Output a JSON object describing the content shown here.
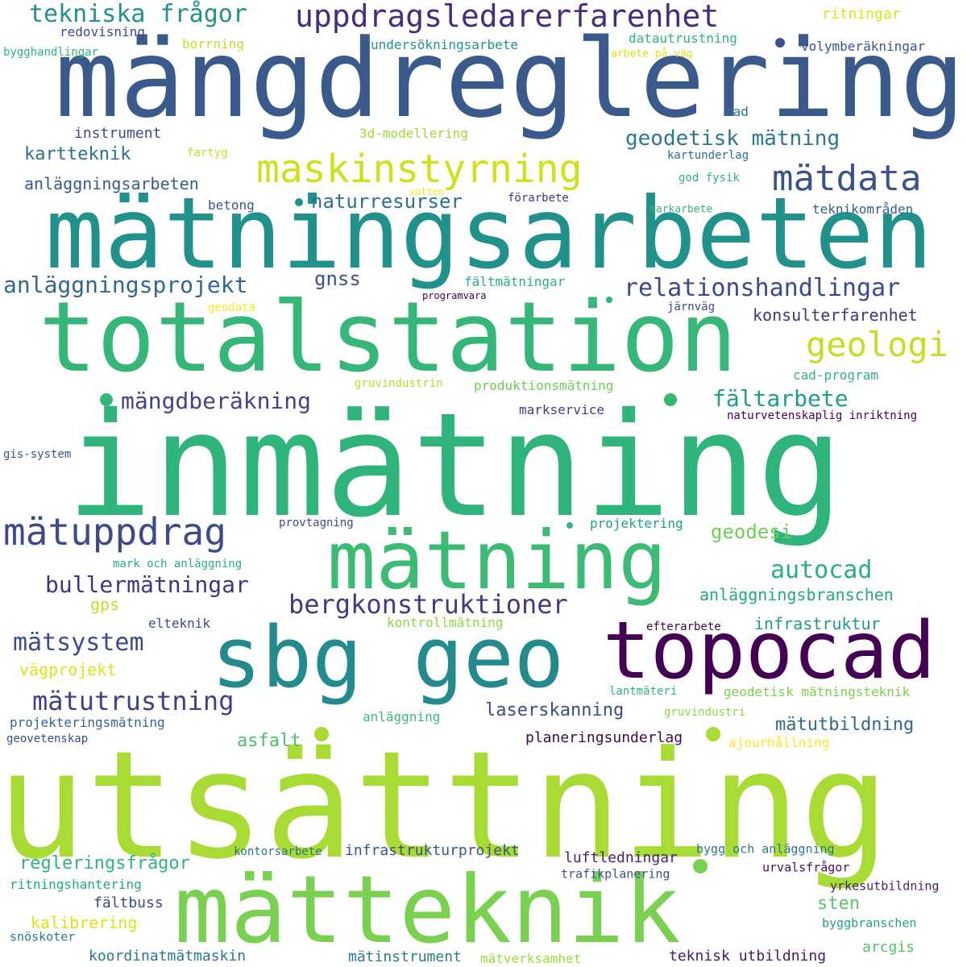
{
  "word_cloud": {
    "words": [
      {
        "text": "mängdreglering",
        "color": "#3a5a8c"
      },
      {
        "text": "mätningsarbeten",
        "color": "#21918c"
      },
      {
        "text": "totalstation",
        "color": "#35b779"
      },
      {
        "text": "inmätning",
        "color": "#2fb47c"
      },
      {
        "text": "mätning",
        "color": "#3cbb75"
      },
      {
        "text": "sbg geo",
        "color": "#238a8d"
      },
      {
        "text": "topocad",
        "color": "#440154"
      },
      {
        "text": "utsättning",
        "color": "#a8db34"
      },
      {
        "text": "mätteknik",
        "color": "#7ad151"
      },
      {
        "text": "maskinstyrning",
        "color": "#d0e11c"
      },
      {
        "text": "uppdragsledarerfarenhet",
        "color": "#472d7b"
      },
      {
        "text": "mätdata",
        "color": "#3b528b"
      },
      {
        "text": "geologi",
        "color": "#c2df23"
      },
      {
        "text": "mätuppdrag",
        "color": "#3e4a89"
      },
      {
        "text": "tekniska frågor",
        "color": "#21918c"
      },
      {
        "text": "relationshandlingar",
        "color": "#3e4989"
      },
      {
        "text": "anläggningsprojekt",
        "color": "#31688e"
      },
      {
        "text": "geodetisk mätning",
        "color": "#2a788e"
      },
      {
        "text": "mängdberäkning",
        "color": "#414487"
      },
      {
        "text": "fältarbete",
        "color": "#1f9e89"
      },
      {
        "text": "bergkonstruktioner",
        "color": "#443983"
      },
      {
        "text": "autocad",
        "color": "#29af7f"
      },
      {
        "text": "bullermätningar",
        "color": "#453581"
      },
      {
        "text": "mätsystem",
        "color": "#3e4a89"
      },
      {
        "text": "mätutrustning",
        "color": "#433e85"
      },
      {
        "text": "naturresurser",
        "color": "#2d708e"
      },
      {
        "text": "gnss",
        "color": "#3b528b"
      },
      {
        "text": "geodesi",
        "color": "#6ece58"
      },
      {
        "text": "kartteknik",
        "color": "#2c728e"
      },
      {
        "text": "anläggningsarbeten",
        "color": "#38598c"
      },
      {
        "text": "anläggningsbranschen",
        "color": "#22a884"
      },
      {
        "text": "infrastruktur",
        "color": "#1f9a8a"
      },
      {
        "text": "laserskanning",
        "color": "#3e4a89"
      },
      {
        "text": "mätutbildning",
        "color": "#31688e"
      },
      {
        "text": "regleringsfrågor",
        "color": "#2fb47c"
      },
      {
        "text": "konsulterfarenhet",
        "color": "#46337e"
      },
      {
        "text": "asfalt",
        "color": "#4ac16d"
      },
      {
        "text": "vägprojekt",
        "color": "#dde318"
      },
      {
        "text": "planeringsunderlag",
        "color": "#3e0751"
      },
      {
        "text": "infrastrukturprojekt",
        "color": "#3b528b"
      },
      {
        "text": "luftledningar",
        "color": "#482173"
      },
      {
        "text": "sten",
        "color": "#56c667"
      },
      {
        "text": "fältbuss",
        "color": "#3e4a89"
      },
      {
        "text": "kalibrering",
        "color": "#dde318"
      },
      {
        "text": "koordinatmätmaskin",
        "color": "#2a788e"
      },
      {
        "text": "mätinstrument",
        "color": "#287c8e"
      },
      {
        "text": "mätverksamhet",
        "color": "#a0da39"
      },
      {
        "text": "teknisk utbildning",
        "color": "#48186a"
      },
      {
        "text": "arcgis",
        "color": "#52c569"
      },
      {
        "text": "byggbranschen",
        "color": "#1fa187"
      },
      {
        "text": "yrkesutbildning",
        "color": "#481f70"
      },
      {
        "text": "urvalsfrågor",
        "color": "#471063"
      },
      {
        "text": "trafikplanering",
        "color": "#3b528b"
      },
      {
        "text": "bygg och anläggning",
        "color": "#2a768e"
      },
      {
        "text": "kontorsarbete",
        "color": "#2c728e"
      },
      {
        "text": "ritningshantering",
        "color": "#22a884"
      },
      {
        "text": "snöskoter",
        "color": "#2a788e"
      },
      {
        "text": "projekteringsmätning",
        "color": "#31688e"
      },
      {
        "text": "geovetenskap",
        "color": "#3e4989"
      },
      {
        "text": "anläggning",
        "color": "#3cbb75"
      },
      {
        "text": "gruvindustri",
        "color": "#8fd744"
      },
      {
        "text": "ajourhållning",
        "color": "#fde725"
      },
      {
        "text": "geodetisk mätningsteknik",
        "color": "#7ad151"
      },
      {
        "text": "lantmäteri",
        "color": "#2fb47c"
      },
      {
        "text": "efterarbete",
        "color": "#440154"
      },
      {
        "text": "elteknik",
        "color": "#3e4a89"
      },
      {
        "text": "kontrollmätning",
        "color": "#90d743"
      },
      {
        "text": "gps",
        "color": "#c2df23"
      },
      {
        "text": "mark och anläggning",
        "color": "#26ad81"
      },
      {
        "text": "provtagning",
        "color": "#3e4989"
      },
      {
        "text": "projektering",
        "color": "#1f9e89"
      },
      {
        "text": "gis-system",
        "color": "#3b528b"
      },
      {
        "text": "markservice",
        "color": "#443a83"
      },
      {
        "text": "naturvetenskaplig inriktning",
        "color": "#440154"
      },
      {
        "text": "produktionsmätning",
        "color": "#6ece58"
      },
      {
        "text": "gruvindustrin",
        "color": "#b5de2b"
      },
      {
        "text": "cad-program",
        "color": "#2fb47c"
      },
      {
        "text": "geodata",
        "color": "#fde725"
      },
      {
        "text": "programvara",
        "color": "#440154"
      },
      {
        "text": "fältmätningar",
        "color": "#2ab07f"
      },
      {
        "text": "järnväg",
        "color": "#3e4a89"
      },
      {
        "text": "betong",
        "color": "#38598c"
      },
      {
        "text": "förarbete",
        "color": "#46337e"
      },
      {
        "text": "vatten",
        "color": "#fde725"
      },
      {
        "text": "markarbete",
        "color": "#35b779"
      },
      {
        "text": "teknikområden",
        "color": "#355f8d"
      },
      {
        "text": "god fysik",
        "color": "#2fb47c"
      },
      {
        "text": "kartunderlag",
        "color": "#2c728e"
      },
      {
        "text": "fartyg",
        "color": "#c2df23"
      },
      {
        "text": "cad",
        "color": "#2c728e"
      },
      {
        "text": "instrument",
        "color": "#3e4a89"
      },
      {
        "text": "3d-modellering",
        "color": "#a0da39"
      },
      {
        "text": "datautrustning",
        "color": "#2fb47c"
      },
      {
        "text": "undersökningsarbete",
        "color": "#21918c"
      },
      {
        "text": "volymberäkningar",
        "color": "#3b528b"
      },
      {
        "text": "ritningar",
        "color": "#dde318"
      },
      {
        "text": "arbete på väg",
        "color": "#dde318"
      },
      {
        "text": "redovisning",
        "color": "#3e4989"
      },
      {
        "text": "borrning",
        "color": "#bddf26"
      },
      {
        "text": "bygghandlingar",
        "color": "#2fb47c"
      }
    ]
  }
}
